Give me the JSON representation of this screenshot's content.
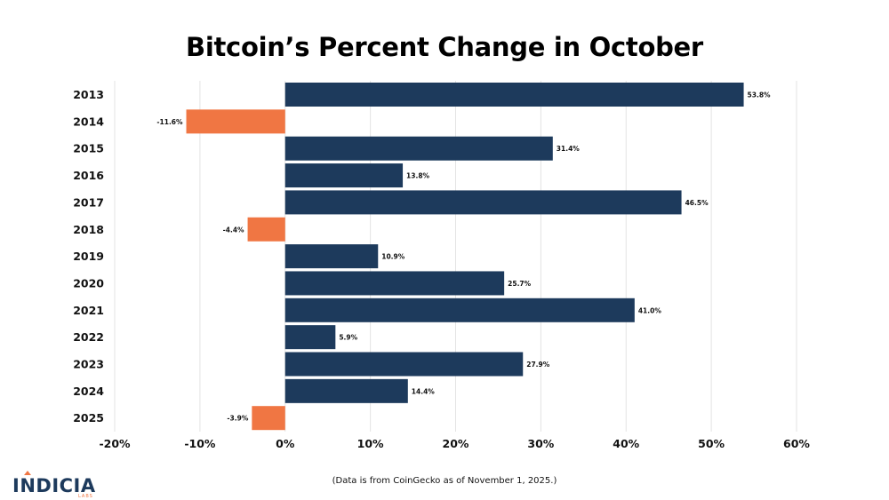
{
  "title": "Bitcoin’s Percent Change in October",
  "note": "(Data is from CoinGecko as of November 1, 2025.)",
  "logo": {
    "word": "INDICIA",
    "sub": "LABS"
  },
  "colors": {
    "positive": "#1d3a5c",
    "negative": "#f07643",
    "grid": "#e3e3e3"
  },
  "chart_data": {
    "type": "bar",
    "orientation": "horizontal",
    "title": "Bitcoin’s Percent Change in October",
    "categories": [
      "2013",
      "2014",
      "2015",
      "2016",
      "2017",
      "2018",
      "2019",
      "2020",
      "2021",
      "2022",
      "2023",
      "2024",
      "2025"
    ],
    "values": [
      53.8,
      -11.6,
      31.4,
      13.8,
      46.5,
      -4.4,
      10.9,
      25.7,
      41.0,
      5.9,
      27.9,
      14.4,
      -3.9
    ],
    "labels": [
      "53.8%",
      "-11.6%",
      "31.4%",
      "13.8%",
      "46.5%",
      "-4.4%",
      "10.9%",
      "25.7%",
      "41.0%",
      "5.9%",
      "27.9%",
      "14.4%",
      "-3.9%"
    ],
    "xlim": [
      -20,
      60
    ],
    "xticks": [
      -20,
      -10,
      0,
      10,
      20,
      30,
      40,
      50,
      60
    ],
    "xtick_labels": [
      "-20%",
      "-10%",
      "0%",
      "10%",
      "20%",
      "30%",
      "40%",
      "50%",
      "60%"
    ],
    "grid": true,
    "xlabel": "",
    "ylabel": ""
  }
}
